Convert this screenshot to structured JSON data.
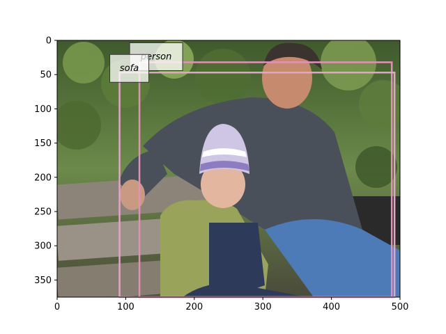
{
  "axes": {
    "x_range": [
      0,
      500
    ],
    "y_range": [
      0,
      375
    ],
    "x_ticks": [
      0,
      100,
      200,
      300,
      400,
      500
    ],
    "y_ticks": [
      0,
      50,
      100,
      150,
      200,
      250,
      300,
      350
    ]
  },
  "image": {
    "description_icon": "photo-icon"
  },
  "annotations": [
    {
      "label": "person",
      "bbox_data": [
        120,
        32,
        488,
        375
      ],
      "color": "#e58fb8"
    },
    {
      "label": "sofa",
      "bbox_data": [
        91,
        47,
        492,
        375
      ],
      "color": "#e0a7c4"
    }
  ]
}
